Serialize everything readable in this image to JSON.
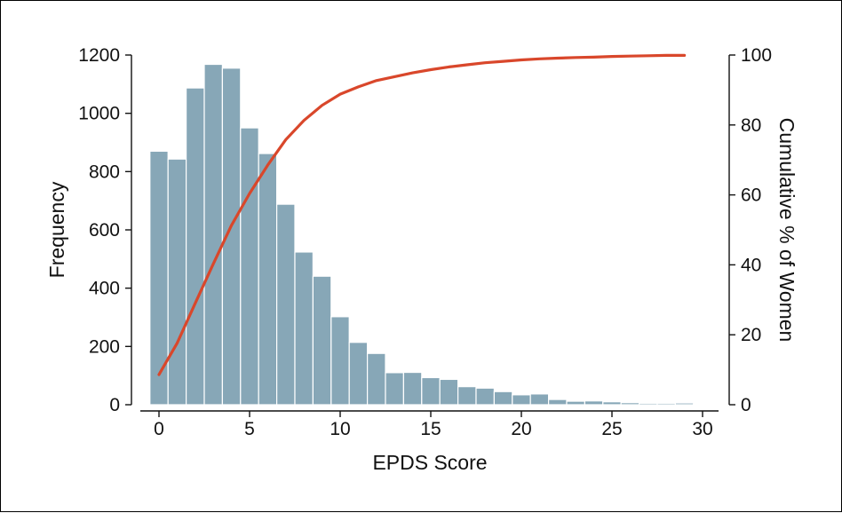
{
  "chart_data": {
    "type": "bar",
    "xlabel": "EPDS Score",
    "ylabel": "Frequency",
    "y2label": "Cumulative % of Women",
    "xlim": [
      -0.8,
      30.8
    ],
    "ylim": [
      0,
      1200
    ],
    "y2lim": [
      0,
      100
    ],
    "xticks": [
      0,
      5,
      10,
      15,
      20,
      25,
      30
    ],
    "yticks": [
      0,
      200,
      400,
      600,
      800,
      1000,
      1200
    ],
    "y2ticks": [
      0,
      20,
      40,
      60,
      80,
      100
    ],
    "grid": false,
    "bar_color": "#87a7b7",
    "line_color": "#d9472b",
    "series": [
      {
        "type": "bar",
        "x": [
          0,
          1,
          2,
          3,
          4,
          5,
          6,
          7,
          8,
          9,
          10,
          11,
          12,
          13,
          14,
          15,
          16,
          17,
          18,
          19,
          20,
          21,
          22,
          23,
          24,
          25,
          26,
          27,
          28,
          29,
          30
        ],
        "values": [
          870,
          843,
          1087,
          1168,
          1155,
          950,
          862,
          688,
          524,
          441,
          302,
          214,
          176,
          110,
          111,
          93,
          87,
          62,
          57,
          45,
          34,
          37,
          18,
          12,
          13,
          10,
          7,
          5,
          5,
          6,
          2
        ]
      },
      {
        "type": "line",
        "axis": "right",
        "x": [
          0,
          1,
          2,
          3,
          4,
          5,
          6,
          7,
          8,
          9,
          10,
          11,
          12,
          13,
          14,
          15,
          16,
          17,
          18,
          19,
          20,
          21,
          22,
          23,
          24,
          25,
          26,
          27,
          28,
          29
        ],
        "values": [
          8.6,
          17.6,
          29.0,
          40.3,
          51.3,
          60.4,
          68.5,
          75.8,
          81.3,
          85.6,
          88.8,
          90.9,
          92.7,
          93.8,
          94.9,
          95.8,
          96.6,
          97.2,
          97.8,
          98.2,
          98.6,
          98.9,
          99.1,
          99.3,
          99.4,
          99.6,
          99.7,
          99.8,
          99.9,
          99.9
        ]
      }
    ]
  }
}
